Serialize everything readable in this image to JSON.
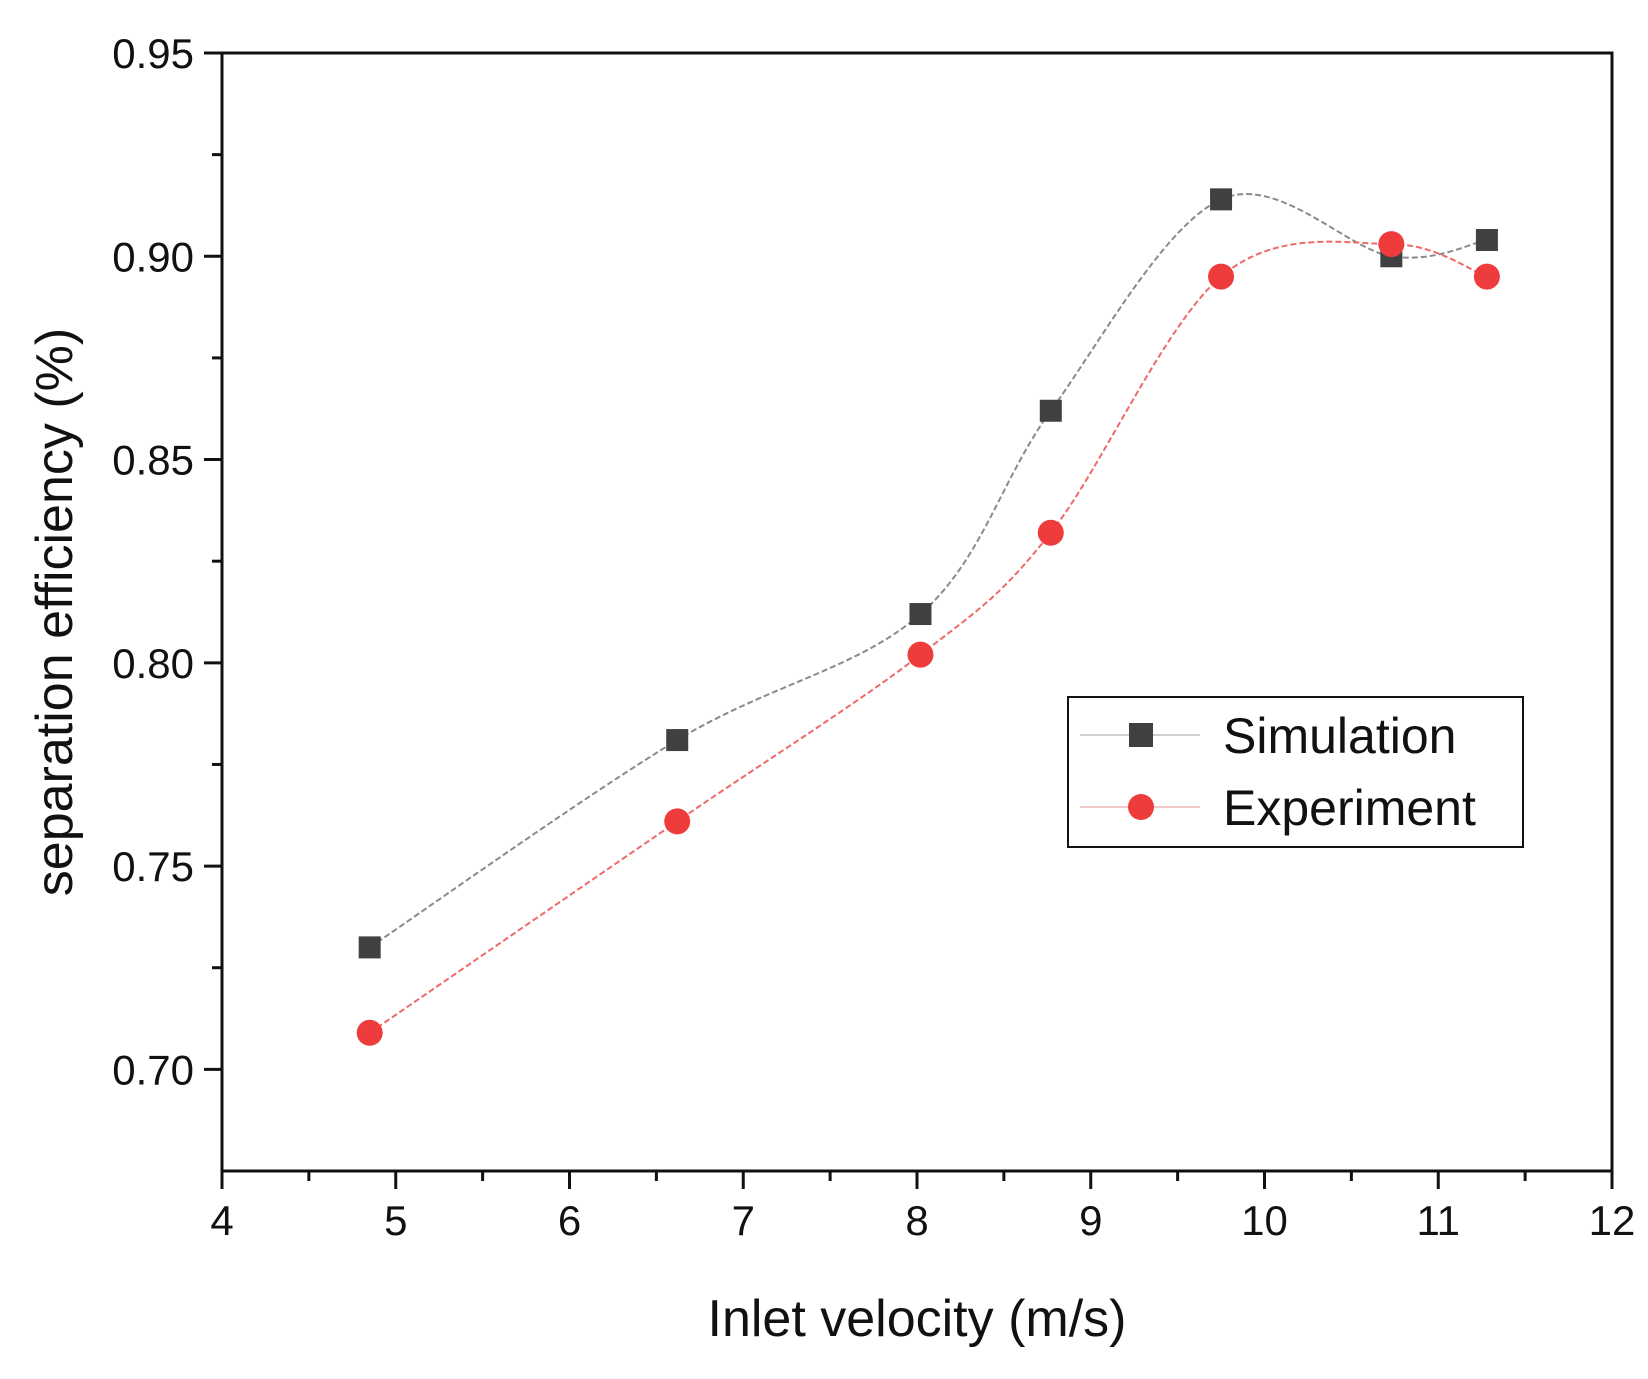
{
  "chart_data": {
    "type": "line",
    "title": "",
    "xlabel": "Inlet velocity (m/s)",
    "ylabel": "separation efficiency (%)",
    "xlim": [
      4,
      12
    ],
    "ylim": [
      0.675,
      0.95
    ],
    "x_ticks": [
      4,
      5,
      6,
      7,
      8,
      9,
      10,
      11,
      12
    ],
    "x_tick_labels": [
      "4",
      "5",
      "6",
      "7",
      "8",
      "9",
      "10",
      "11",
      "12"
    ],
    "y_ticks": [
      0.7,
      0.75,
      0.8,
      0.85,
      0.9,
      0.95
    ],
    "y_tick_labels": [
      "0.70",
      "0.75",
      "0.80",
      "0.85",
      "0.90",
      "0.95"
    ],
    "grid": false,
    "legend_position": "center-right",
    "series": [
      {
        "name": "Simulation",
        "marker": "square",
        "color": "#404040",
        "line_color": "#8a8a8a",
        "x": [
          4.85,
          6.62,
          8.02,
          8.77,
          9.75,
          10.73,
          11.28
        ],
        "y": [
          0.73,
          0.781,
          0.812,
          0.862,
          0.914,
          0.9,
          0.904
        ]
      },
      {
        "name": "Experiment",
        "marker": "circle",
        "color": "#ee3b3b",
        "line_color": "#ee6a6a",
        "x": [
          4.85,
          6.62,
          8.02,
          8.77,
          9.75,
          10.73,
          11.28
        ],
        "y": [
          0.709,
          0.761,
          0.802,
          0.832,
          0.895,
          0.903,
          0.895
        ]
      }
    ]
  }
}
